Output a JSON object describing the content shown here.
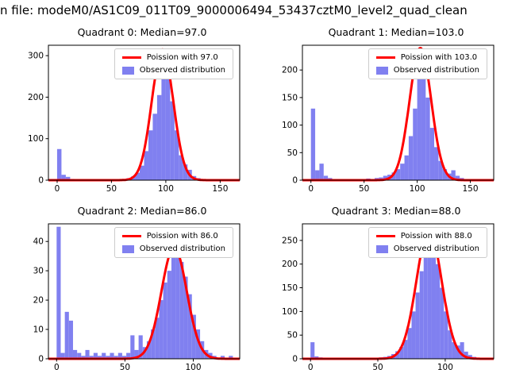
{
  "figure_title": "n file: modeM0/AS1C09_011T09_9000006494_53437cztM0_level2_quad_clean",
  "colors": {
    "curve": "#ff0000",
    "hist": "#8080f0",
    "legend_border": "#cccccc",
    "axis": "#000000",
    "background": "#ffffff"
  },
  "chart_data": [
    {
      "type": "bar",
      "title": "Quadrant 0: Median=97.0",
      "median": 97.0,
      "legend": [
        "Poission with 97.0",
        "Observed distribution"
      ],
      "xlabel": "",
      "ylabel": "",
      "xlim": [
        -8,
        168
      ],
      "ylim": [
        0,
        325
      ],
      "x_ticks": [
        0,
        50,
        100,
        150
      ],
      "y_ticks": [
        0,
        100,
        200,
        300
      ],
      "bin_start": 0,
      "bin_width": 4,
      "bin_heights": [
        75,
        13,
        8,
        3,
        2,
        1,
        2,
        1,
        0,
        1,
        2,
        1,
        2,
        1,
        2,
        3,
        5,
        9,
        18,
        35,
        70,
        120,
        160,
        205,
        300,
        255,
        190,
        120,
        60,
        38,
        25,
        10,
        5,
        2,
        1,
        1,
        0,
        1,
        0,
        1
      ],
      "curve": {
        "lambda": 97,
        "peak": 315
      }
    },
    {
      "type": "bar",
      "title": "Quadrant 1: Median=103.0",
      "median": 103.0,
      "legend": [
        "Poission with 103.0",
        "Observed distribution"
      ],
      "xlabel": "",
      "ylabel": "",
      "xlim": [
        -8,
        172
      ],
      "ylim": [
        0,
        245
      ],
      "x_ticks": [
        0,
        50,
        100,
        150
      ],
      "y_ticks": [
        0,
        50,
        100,
        150,
        200
      ],
      "bin_start": 0,
      "bin_width": 4,
      "bin_heights": [
        130,
        18,
        30,
        8,
        4,
        2,
        1,
        2,
        1,
        1,
        2,
        1,
        2,
        3,
        2,
        4,
        5,
        8,
        10,
        14,
        20,
        30,
        45,
        80,
        130,
        205,
        185,
        150,
        95,
        60,
        35,
        20,
        12,
        18,
        8,
        4,
        2,
        1,
        1,
        0,
        1,
        0
      ],
      "curve": {
        "lambda": 103,
        "peak": 240
      }
    },
    {
      "type": "bar",
      "title": "Quadrant 2: Median=86.0",
      "median": 86.0,
      "legend": [
        "Poission with 86.0",
        "Observed distribution"
      ],
      "xlabel": "",
      "ylabel": "",
      "xlim": [
        -6,
        134
      ],
      "ylim": [
        0,
        46
      ],
      "x_ticks": [
        0,
        50,
        100
      ],
      "y_ticks": [
        0,
        10,
        20,
        30,
        40
      ],
      "bin_start": 0,
      "bin_width": 3,
      "bin_heights": [
        45,
        2,
        16,
        13,
        3,
        2,
        1,
        3,
        1,
        2,
        1,
        2,
        1,
        2,
        1,
        2,
        1,
        2,
        8,
        3,
        8,
        4,
        6,
        10,
        14,
        20,
        26,
        30,
        35,
        38,
        33,
        28,
        22,
        15,
        10,
        6,
        3,
        2,
        1,
        0,
        1,
        0,
        1
      ],
      "curve": {
        "lambda": 86,
        "peak": 38
      }
    },
    {
      "type": "bar",
      "title": "Quadrant 3: Median=88.0",
      "median": 88.0,
      "legend": [
        "Poission with 88.0",
        "Observed distribution"
      ],
      "xlabel": "",
      "ylabel": "",
      "xlim": [
        -6,
        136
      ],
      "ylim": [
        0,
        285
      ],
      "x_ticks": [
        0,
        50,
        100
      ],
      "y_ticks": [
        0,
        50,
        100,
        150,
        200,
        250
      ],
      "bin_start": 0,
      "bin_width": 3,
      "bin_heights": [
        35,
        5,
        3,
        2,
        1,
        1,
        1,
        0,
        1,
        0,
        1,
        1,
        0,
        1,
        1,
        2,
        2,
        3,
        4,
        6,
        10,
        16,
        25,
        40,
        65,
        100,
        140,
        185,
        230,
        270,
        245,
        200,
        150,
        100,
        60,
        35,
        28,
        35,
        15,
        8,
        4,
        2,
        1,
        0
      ],
      "curve": {
        "lambda": 88,
        "peak": 272
      }
    }
  ]
}
